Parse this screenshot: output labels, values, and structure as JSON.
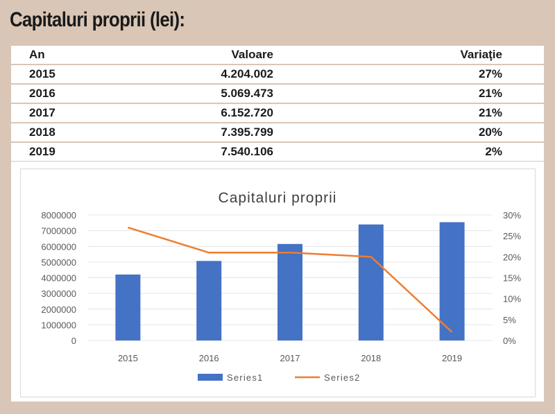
{
  "heading": "Capitaluri proprii (lei):",
  "table": {
    "headers": [
      "An",
      "Valoare",
      "Variaţie"
    ],
    "rows": [
      [
        "2015",
        "4.204.002",
        "27%"
      ],
      [
        "2016",
        "5.069.473",
        "21%"
      ],
      [
        "2017",
        "6.152.720",
        "21%"
      ],
      [
        "2018",
        "7.395.799",
        "20%"
      ],
      [
        "2019",
        "7.540.106",
        "2%"
      ]
    ]
  },
  "chart_data": {
    "type": "bar",
    "title": "Capitaluri proprii",
    "categories": [
      "2015",
      "2016",
      "2017",
      "2018",
      "2019"
    ],
    "series": [
      {
        "name": "Series1",
        "type": "bar",
        "axis": "left",
        "color": "#4472c4",
        "values": [
          4204002,
          5069473,
          6152720,
          7395799,
          7540106
        ]
      },
      {
        "name": "Series2",
        "type": "line",
        "axis": "right",
        "color": "#ed7d31",
        "values": [
          0.27,
          0.21,
          0.21,
          0.2,
          0.02
        ]
      }
    ],
    "y_left": {
      "min": 0,
      "max": 8000000,
      "ticks": [
        "0",
        "1000000",
        "2000000",
        "3000000",
        "4000000",
        "5000000",
        "6000000",
        "7000000",
        "8000000"
      ]
    },
    "y_right": {
      "min": 0,
      "max": 0.3,
      "ticks": [
        "0%",
        "5%",
        "10%",
        "15%",
        "20%",
        "25%",
        "30%"
      ]
    },
    "legend_position": "bottom",
    "grid": true
  }
}
